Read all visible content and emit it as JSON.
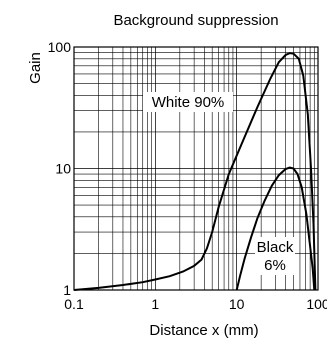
{
  "chart_data": {
    "type": "line",
    "title": "Background suppression",
    "xlabel": "Distance x (mm)",
    "ylabel": "Gain",
    "x_scale": "log",
    "y_scale": "log",
    "xlim": [
      0.1,
      100
    ],
    "ylim": [
      1,
      100
    ],
    "x_ticks": [
      {
        "value": 0.1,
        "label": "0.1"
      },
      {
        "value": 1,
        "label": "1"
      },
      {
        "value": 10,
        "label": "10"
      },
      {
        "value": 100,
        "label": "100"
      }
    ],
    "y_ticks": [
      {
        "value": 1,
        "label": "1"
      },
      {
        "value": 10,
        "label": "10"
      },
      {
        "value": 100,
        "label": "100"
      }
    ],
    "grid": true,
    "series": [
      {
        "name": "White 90%",
        "label_lines": [
          "White 90%"
        ],
        "points": [
          [
            0.1,
            1.0
          ],
          [
            0.2,
            1.04
          ],
          [
            0.4,
            1.1
          ],
          [
            0.7,
            1.16
          ],
          [
            1.0,
            1.22
          ],
          [
            1.5,
            1.3
          ],
          [
            2.2,
            1.42
          ],
          [
            3.0,
            1.58
          ],
          [
            3.7,
            1.78
          ],
          [
            4.3,
            2.2
          ],
          [
            5.0,
            3.0
          ],
          [
            6.0,
            4.8
          ],
          [
            8.0,
            9.0
          ],
          [
            12.0,
            17.0
          ],
          [
            18.0,
            32.0
          ],
          [
            26.0,
            55.0
          ],
          [
            33.0,
            75.0
          ],
          [
            40.0,
            86.0
          ],
          [
            45.0,
            89.0
          ],
          [
            50.0,
            88.0
          ],
          [
            58.0,
            80.0
          ],
          [
            66.0,
            58.0
          ],
          [
            75.0,
            28.0
          ],
          [
            82.0,
            10.0
          ],
          [
            88.0,
            3.5
          ],
          [
            93.0,
            1.0
          ]
        ]
      },
      {
        "name": "Black 6%",
        "label_lines": [
          "Black",
          "6%"
        ],
        "points": [
          [
            10.0,
            1.0
          ],
          [
            11.0,
            1.3
          ],
          [
            12.5,
            1.8
          ],
          [
            15.0,
            2.7
          ],
          [
            18.0,
            3.9
          ],
          [
            22.0,
            5.4
          ],
          [
            27.0,
            7.2
          ],
          [
            33.0,
            8.8
          ],
          [
            40.0,
            9.9
          ],
          [
            45.0,
            10.2
          ],
          [
            50.0,
            10.0
          ],
          [
            56.0,
            9.0
          ],
          [
            63.0,
            7.0
          ],
          [
            72.0,
            4.2
          ],
          [
            80.0,
            2.3
          ],
          [
            86.0,
            1.5
          ],
          [
            90.0,
            1.0
          ]
        ]
      }
    ]
  }
}
